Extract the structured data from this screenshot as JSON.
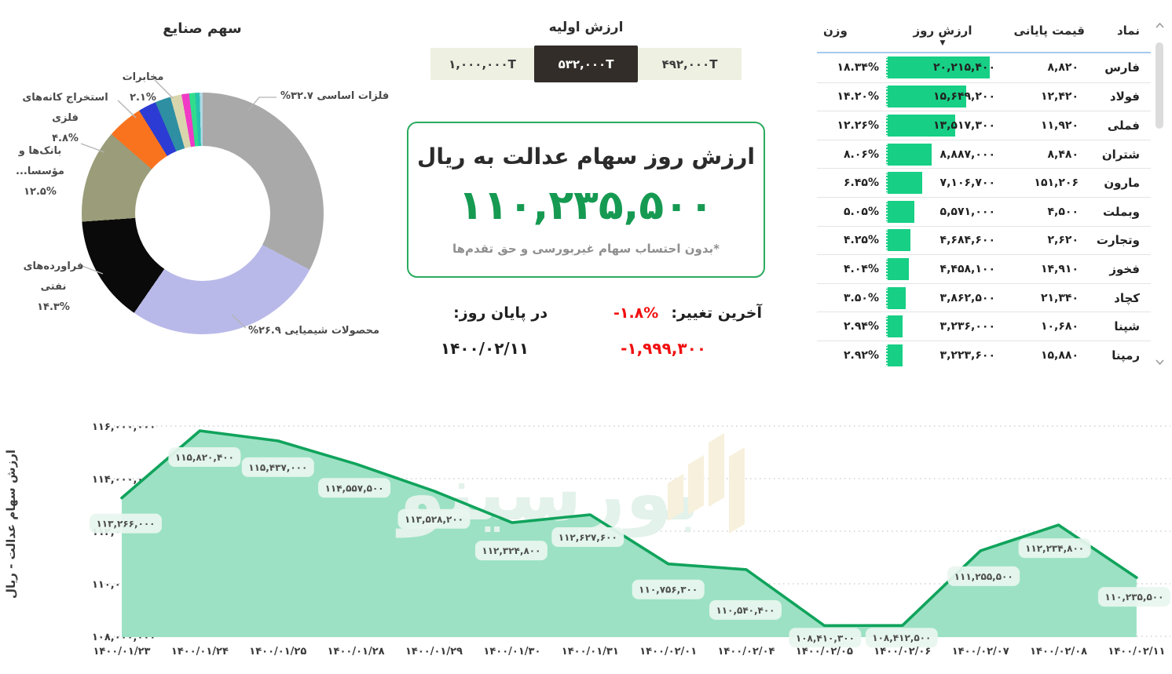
{
  "donut": {
    "title": "سهم صنایع",
    "slices": [
      {
        "name": "فلزات اساسی",
        "percent": "%۳۲.۷",
        "value": 32.7,
        "color": "#a9a9a9"
      },
      {
        "name": "محصولات شیمیایی",
        "percent": "%۲۶.۹",
        "value": 26.9,
        "color": "#b9b9e9"
      },
      {
        "name": "فراورده‌های نفتی",
        "percent": "۱۴.۳%",
        "value": 14.3,
        "color": "#0a0a0a"
      },
      {
        "name": "بانک‌ها و مؤسسا...",
        "percent": "۱۲.۵%",
        "value": 12.5,
        "color": "#9b9c79"
      },
      {
        "name": "استخراج کانه‌های فلزی",
        "percent": "۴.۸%",
        "value": 4.8,
        "color": "#f9731f"
      },
      {
        "name": "",
        "percent": "",
        "value": 2.4,
        "color": "#2c3bd3"
      },
      {
        "name": "مخابرات",
        "percent": "۲.۱%",
        "value": 2.1,
        "color": "#2e8fa3"
      },
      {
        "name": "",
        "percent": "",
        "value": 1.5,
        "color": "#d9d6ae"
      },
      {
        "name": "",
        "percent": "",
        "value": 1.0,
        "color": "#f13ac6"
      },
      {
        "name": "",
        "percent": "",
        "value": 0.8,
        "color": "#30dd8c"
      },
      {
        "name": "",
        "percent": "",
        "value": 0.6,
        "color": "#25c3ad"
      },
      {
        "name": "",
        "percent": "",
        "value": 0.4,
        "color": "#aed8e6"
      }
    ]
  },
  "initial_value": {
    "title": "ارزش اولیه",
    "options": [
      {
        "label": "۴۹۲,۰۰۰T",
        "active": false
      },
      {
        "label": "۵۳۲,۰۰۰T",
        "active": true
      },
      {
        "label": "۱,۰۰۰,۰۰۰T",
        "active": false
      }
    ]
  },
  "value_box": {
    "title": "ارزش روز سهام عدالت به ریال",
    "value": "۱۱۰,۲۳۵,۵۰۰",
    "note": "*بدون احتساب سهام غیربورسی و حق تقدم‌ها"
  },
  "change": {
    "label": "آخرین تغییر:",
    "percent": "-۱.۸%",
    "amount": "-۱,۹۹۹,۳۰۰",
    "end_label": "در پایان روز:",
    "date": "۱۴۰۰/۰۲/۱۱"
  },
  "table": {
    "headers": {
      "symbol": "نماد",
      "close": "قیمت پایانی",
      "value": "ارزش روز",
      "weight": "وزن"
    },
    "rows": [
      {
        "symbol": "فارس",
        "close": "۸,۸۲۰",
        "value": "۲۰,۲۱۵,۴۰۰",
        "value_num": 20215400,
        "weight": "۱۸.۳۴%"
      },
      {
        "symbol": "فولاد",
        "close": "۱۲,۴۲۰",
        "value": "۱۵,۶۴۹,۲۰۰",
        "value_num": 15649200,
        "weight": "۱۴.۲۰%"
      },
      {
        "symbol": "فملی",
        "close": "۱۱,۹۲۰",
        "value": "۱۳,۵۱۷,۳۰۰",
        "value_num": 13517300,
        "weight": "۱۲.۲۶%"
      },
      {
        "symbol": "شتران",
        "close": "۸,۴۸۰",
        "value": "۸,۸۸۷,۰۰۰",
        "value_num": 8887000,
        "weight": "۸.۰۶%"
      },
      {
        "symbol": "مارون",
        "close": "۱۵۱,۲۰۶",
        "value": "۷,۱۰۶,۷۰۰",
        "value_num": 7106700,
        "weight": "۶.۴۵%"
      },
      {
        "symbol": "وبملت",
        "close": "۴,۵۰۰",
        "value": "۵,۵۷۱,۰۰۰",
        "value_num": 5571000,
        "weight": "۵.۰۵%"
      },
      {
        "symbol": "وتجارت",
        "close": "۲,۶۲۰",
        "value": "۴,۶۸۴,۶۰۰",
        "value_num": 4684600,
        "weight": "۴.۲۵%"
      },
      {
        "symbol": "فخوز",
        "close": "۱۴,۹۱۰",
        "value": "۴,۴۵۸,۱۰۰",
        "value_num": 4458100,
        "weight": "۴.۰۴%"
      },
      {
        "symbol": "کچاد",
        "close": "۲۱,۳۴۰",
        "value": "۳,۸۶۲,۵۰۰",
        "value_num": 3862500,
        "weight": "۳.۵۰%"
      },
      {
        "symbol": "شپنا",
        "close": "۱۰,۶۸۰",
        "value": "۳,۲۳۶,۰۰۰",
        "value_num": 3236000,
        "weight": "۲.۹۴%"
      },
      {
        "symbol": "رمپنا",
        "close": "۱۵,۸۸۰",
        "value": "۳,۲۲۳,۶۰۰",
        "value_num": 3223600,
        "weight": "۲.۹۲%"
      }
    ],
    "sort_icon": "▼",
    "bar_color": "#17cf85"
  },
  "watermark": {
    "text": "بورسینو"
  },
  "chart_data": [
    {
      "type": "pie",
      "title": "سهم صنایع",
      "labels": [
        "فلزات اساسی",
        "محصولات شیمیایی",
        "فراورده‌های نفتی",
        "بانک‌ها و مؤسسا...",
        "استخراج کانه‌های فلزی",
        "(بدون برچسب)",
        "مخابرات",
        "(بدون برچسب)",
        "(بدون برچسب)",
        "(بدون برچسب)",
        "(بدون برچسب)",
        "(بدون برچسب)"
      ],
      "values": [
        32.7,
        26.9,
        14.3,
        12.5,
        4.8,
        2.4,
        2.1,
        1.5,
        1.0,
        0.8,
        0.6,
        0.4
      ],
      "donut": true
    },
    {
      "type": "area",
      "title": "",
      "ylabel": "ارزش سهام عدالت - ریال",
      "x": [
        "۱۴۰۰/۰۱/۲۳",
        "۱۴۰۰/۰۱/۲۴",
        "۱۴۰۰/۰۱/۲۵",
        "۱۴۰۰/۰۱/۲۸",
        "۱۴۰۰/۰۱/۲۹",
        "۱۴۰۰/۰۱/۳۰",
        "۱۴۰۰/۰۱/۳۱",
        "۱۴۰۰/۰۲/۰۱",
        "۱۴۰۰/۰۲/۰۴",
        "۱۴۰۰/۰۲/۰۵",
        "۱۴۰۰/۰۲/۰۶",
        "۱۴۰۰/۰۲/۰۷",
        "۱۴۰۰/۰۲/۰۸",
        "۱۴۰۰/۰۲/۱۱"
      ],
      "values": [
        113266000,
        115820400,
        115437000,
        114557500,
        113528200,
        112324800,
        112627600,
        110756300,
        110540400,
        108410300,
        108412500,
        111255500,
        112234800,
        110235500
      ],
      "point_labels": [
        "۱۱۳,۲۶۶,۰۰۰",
        "۱۱۵,۸۲۰,۴۰۰",
        "۱۱۵,۴۳۷,۰۰۰",
        "۱۱۴,۵۵۷,۵۰۰",
        "۱۱۳,۵۲۸,۲۰۰",
        "۱۱۲,۳۲۴,۸۰۰",
        "۱۱۲,۶۲۷,۶۰۰",
        "۱۱۰,۷۵۶,۳۰۰",
        "۱۱۰,۵۴۰,۴۰۰",
        "۱۰۸,۴۱۰,۳۰۰",
        "۱۰۸,۴۱۲,۵۰۰",
        "۱۱۱,۲۵۵,۵۰۰",
        "۱۱۲,۲۳۴,۸۰۰",
        "۱۱۰,۲۳۵,۵۰۰"
      ],
      "yticks": [
        {
          "label": "۱۱۶,۰۰۰,۰۰۰",
          "value": 116000000
        },
        {
          "label": "۱۱۴,۰۰۰,۰۰۰",
          "value": 114000000
        },
        {
          "label": "۱۱۲,۰۰۰,۰۰۰",
          "value": 112000000
        },
        {
          "label": "۱۱۰,۰۰۰,۰۰۰",
          "value": 110000000
        },
        {
          "label": "۱۰۸,۰۰۰,۰۰۰",
          "value": 108000000
        }
      ],
      "ylim": [
        108000000,
        116000000
      ],
      "grid": "dotted",
      "legend": "none",
      "line_color": "#10a35c",
      "fill_color": "#9ce1c4"
    }
  ]
}
